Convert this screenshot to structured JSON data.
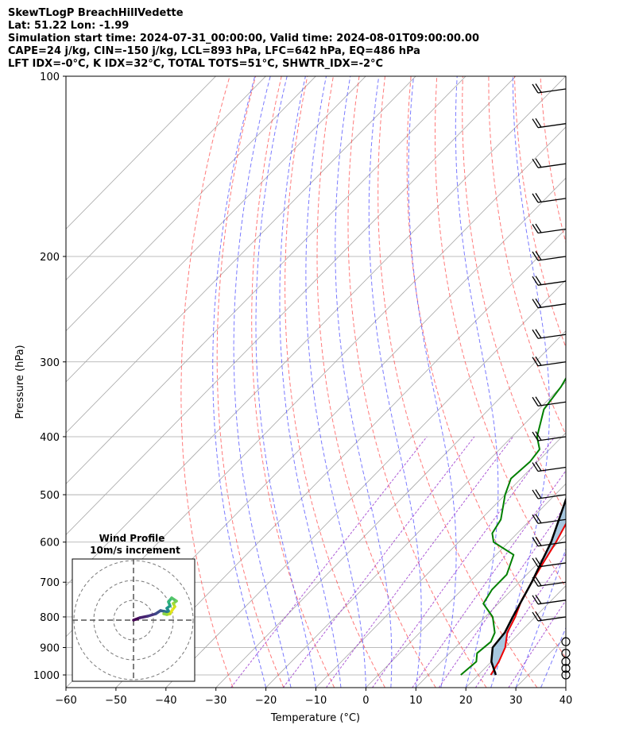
{
  "header": {
    "line1": "SkewTLogP BreachHillVedette",
    "line2": "Lat: 51.22   Lon: -1.99",
    "line3": "Simulation start time: 2024-07-31_00:00:00, Valid time: 2024-08-01T09:00:00.00",
    "line4": "CAPE=24 j/kg, CIN=-150 j/kg, LCL=893 hPa, LFC=642 hPa, EQ=486 hPa",
    "line5": "LFT IDX=-0°C, K IDX=32°C, TOTAL TOTS=51°C, SHWTR_IDX=-2°C"
  },
  "chart_data": {
    "type": "line",
    "chart_kind": "skew-T log-P diagram",
    "xlabel": "Temperature (°C)",
    "ylabel": "Pressure (hPa)",
    "xlim": [
      -60,
      40
    ],
    "ylim": [
      1050,
      100
    ],
    "y_scale": "log",
    "x_ticks": [
      -60,
      -50,
      -40,
      -30,
      -20,
      -10,
      0,
      10,
      20,
      30,
      40
    ],
    "x_tick_labels": [
      "−60",
      "−50",
      "−40",
      "−30",
      "−20",
      "−10",
      "0",
      "10",
      "20",
      "30",
      "40"
    ],
    "y_ticks": [
      100,
      200,
      300,
      400,
      500,
      600,
      700,
      800,
      900,
      1000
    ],
    "grid": true,
    "colors": {
      "temperature": "#ee0000",
      "dewpoint": "#008000",
      "parcel": "#000000",
      "cape_fill": "#a7c8e0",
      "dry_adiabats": "#ff4d4d",
      "moist_adiabats": "#4d4dff",
      "mixing_ratio": "#9933cc",
      "isotherms": "#a6a6a6"
    },
    "series": [
      {
        "key": "temperature",
        "points": [
          [
            1000,
            22.5
          ],
          [
            950,
            21.5
          ],
          [
            900,
            20.0
          ],
          [
            850,
            17.5
          ],
          [
            800,
            16.0
          ],
          [
            750,
            14.0
          ],
          [
            700,
            12.5
          ],
          [
            650,
            11.0
          ],
          [
            600,
            9.5
          ],
          [
            550,
            7.5
          ],
          [
            500,
            5.5
          ],
          [
            470,
            4.5
          ],
          [
            430,
            2.5
          ],
          [
            400,
            0.5
          ],
          [
            350,
            -4.0
          ],
          [
            300,
            -9.5
          ],
          [
            270,
            -13.0
          ],
          [
            250,
            -16.0
          ],
          [
            240,
            -17.0
          ],
          [
            230,
            -17.5
          ],
          [
            220,
            -16.0
          ],
          [
            200,
            -13.0
          ],
          [
            180,
            -10.0
          ],
          [
            165,
            -9.0
          ],
          [
            150,
            -9.0
          ],
          [
            130,
            -9.0
          ],
          [
            115,
            -9.0
          ],
          [
            100,
            -8.0
          ]
        ]
      },
      {
        "key": "dewpoint",
        "points": [
          [
            1000,
            16.5
          ],
          [
            950,
            17.0
          ],
          [
            920,
            15.5
          ],
          [
            880,
            16.0
          ],
          [
            850,
            15.0
          ],
          [
            800,
            11.5
          ],
          [
            760,
            7.0
          ],
          [
            720,
            6.0
          ],
          [
            680,
            6.0
          ],
          [
            630,
            3.5
          ],
          [
            600,
            -3.0
          ],
          [
            580,
            -5.0
          ],
          [
            550,
            -6.0
          ],
          [
            500,
            -10.0
          ],
          [
            470,
            -12.0
          ],
          [
            440,
            -11.5
          ],
          [
            420,
            -12.0
          ],
          [
            400,
            -15.0
          ],
          [
            360,
            -19.0
          ],
          [
            330,
            -20.0
          ],
          [
            300,
            -22.0
          ],
          [
            270,
            -24.0
          ],
          [
            240,
            -25.5
          ],
          [
            220,
            -25.5
          ],
          [
            200,
            -26.0
          ],
          [
            190,
            -28.0
          ],
          [
            175,
            -31.0
          ],
          [
            165,
            -34.0
          ],
          [
            150,
            -36.0
          ],
          [
            130,
            -38.0
          ],
          [
            115,
            -41.0
          ],
          [
            100,
            -44.0
          ]
        ]
      },
      {
        "key": "parcel",
        "points": [
          [
            1000,
            23.5
          ],
          [
            950,
            20.0
          ],
          [
            900,
            17.5
          ],
          [
            850,
            17.0
          ],
          [
            800,
            15.5
          ],
          [
            700,
            12.5
          ],
          [
            600,
            8.5
          ],
          [
            500,
            2.5
          ],
          [
            400,
            -6.0
          ],
          [
            300,
            -18.0
          ],
          [
            250,
            -26.0
          ],
          [
            200,
            -37.0
          ],
          [
            150,
            -52.0
          ],
          [
            120,
            -62.0
          ],
          [
            100,
            -71.0
          ]
        ]
      }
    ],
    "wind_barbs": {
      "pressures": [
        1000,
        975,
        950,
        920,
        880,
        800,
        750,
        700,
        650,
        600,
        550,
        500,
        450,
        400,
        350,
        300,
        270,
        240,
        220,
        200,
        180,
        160,
        140,
        120,
        105
      ],
      "calm_circles_at": [
        1000,
        975,
        950,
        920,
        880
      ]
    },
    "inset": {
      "title": "Wind Profile",
      "subtitle": "10m/s increment",
      "rings": 3
    }
  }
}
